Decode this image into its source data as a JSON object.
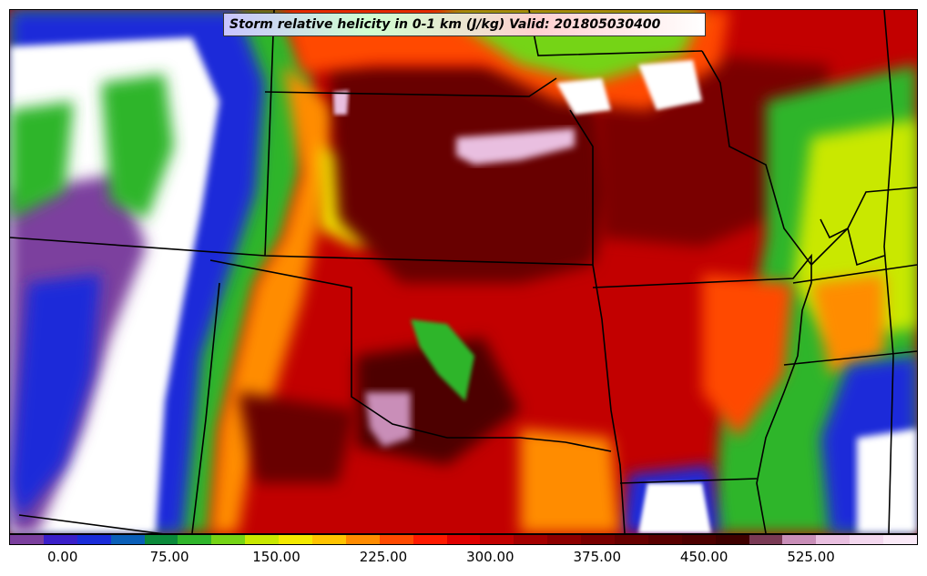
{
  "title": "Storm relative helicity in 0-1 km (J/kg) Valid: 201805030400",
  "colorbar": {
    "colors": [
      "#7b3f9e",
      "#3a1fc9",
      "#1a2cd9",
      "#0a5fb8",
      "#0b8a3a",
      "#2fb52a",
      "#75d415",
      "#c9e800",
      "#f4ea00",
      "#ffc400",
      "#ff8c00",
      "#ff4a00",
      "#ff1a00",
      "#e00000",
      "#c20000",
      "#a50000",
      "#8e0000",
      "#7a0000",
      "#680000",
      "#5a0000",
      "#4e0000",
      "#3f0000",
      "#7a3a55",
      "#c98eb8",
      "#e9bfe0",
      "#f4d8ef",
      "#fbeaf8"
    ],
    "tick_labels": [
      "0.00",
      "75.00",
      "150.00",
      "225.00",
      "300.00",
      "375.00",
      "450.00",
      "525.00"
    ],
    "tick_values": [
      0,
      75,
      150,
      225,
      300,
      375,
      450,
      525
    ],
    "min": -37.5,
    "max": 600
  }
}
